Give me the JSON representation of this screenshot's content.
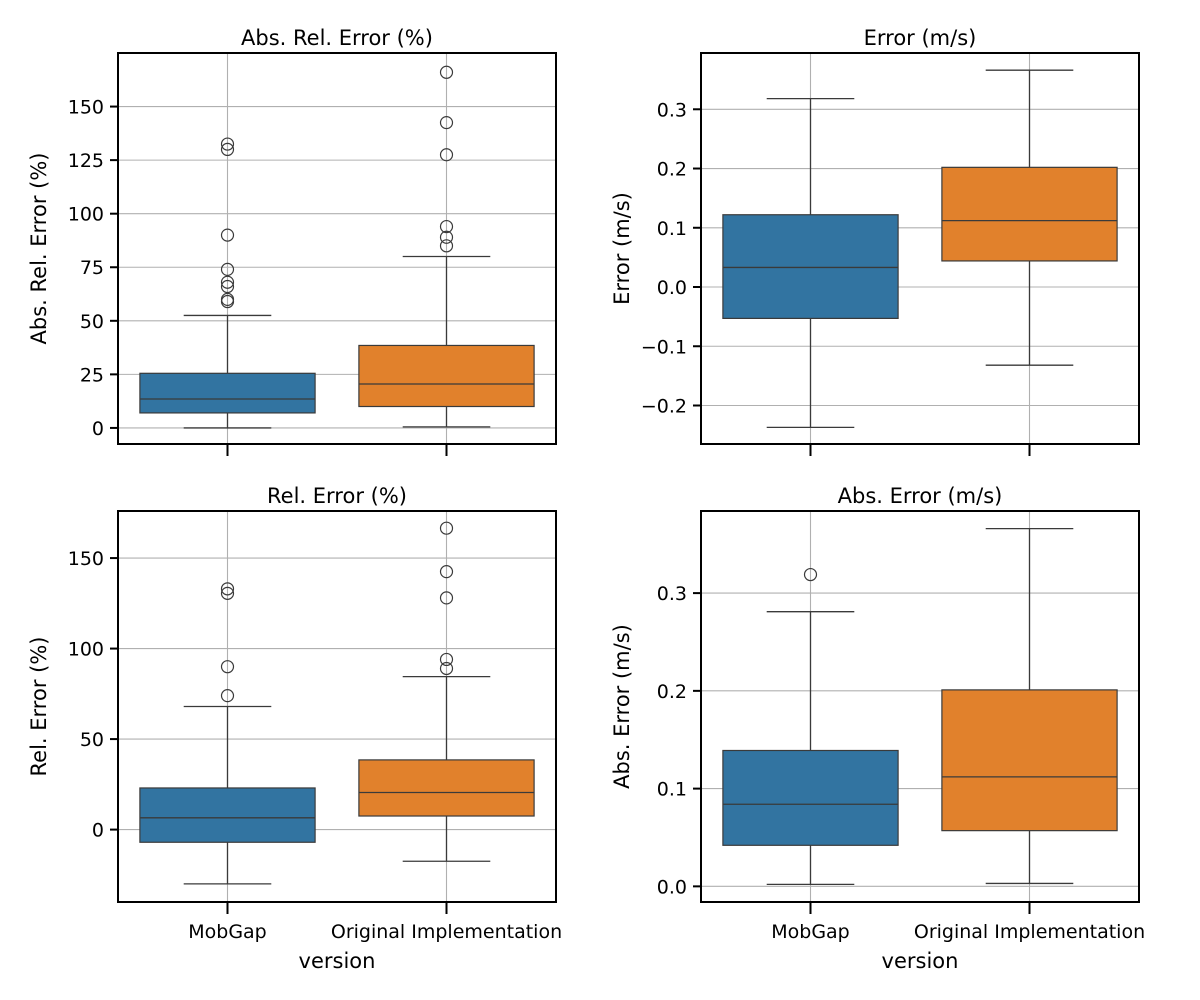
{
  "chart_data": [
    {
      "type": "box",
      "title": "Abs. Rel. Error (%)",
      "xlabel": "",
      "ylabel": "Abs. Rel. Error (%)",
      "categories": [
        "MobGap",
        "Original Implementation"
      ],
      "colors": [
        "#3274a1",
        "#e1812c"
      ],
      "ylim": [
        -7.5,
        175
      ],
      "yticks": [
        0,
        25,
        50,
        75,
        100,
        125,
        150
      ],
      "show_xticklabels": false,
      "grid": true,
      "boxes": [
        {
          "whislo": 0.0,
          "q1": 7.0,
          "med": 13.5,
          "q3": 25.5,
          "whishi": 52.5,
          "fliers": [
            59,
            60,
            66,
            68,
            74,
            90,
            130,
            132.5
          ]
        },
        {
          "whislo": 0.5,
          "q1": 10.0,
          "med": 20.5,
          "q3": 38.5,
          "whishi": 80.0,
          "fliers": [
            85,
            89,
            94,
            127.5,
            142.5,
            166
          ]
        }
      ]
    },
    {
      "type": "box",
      "title": "Error (m/s)",
      "xlabel": "",
      "ylabel": "Error (m/s)",
      "categories": [
        "MobGap",
        "Original Implementation"
      ],
      "colors": [
        "#3274a1",
        "#e1812c"
      ],
      "ylim": [
        -0.265,
        0.395
      ],
      "yticks": [
        -0.2,
        -0.1,
        0.0,
        0.1,
        0.2,
        0.3
      ],
      "ytick_labels": [
        "−0.2",
        "−0.1",
        "0.0",
        "0.1",
        "0.2",
        "0.3"
      ],
      "show_xticklabels": false,
      "grid": true,
      "boxes": [
        {
          "whislo": -0.237,
          "q1": -0.053,
          "med": 0.033,
          "q3": 0.122,
          "whishi": 0.318,
          "fliers": []
        },
        {
          "whislo": -0.132,
          "q1": 0.044,
          "med": 0.112,
          "q3": 0.202,
          "whishi": 0.366,
          "fliers": []
        }
      ]
    },
    {
      "type": "box",
      "title": "Rel. Error (%)",
      "xlabel": "version",
      "ylabel": "Rel. Error (%)",
      "categories": [
        "MobGap",
        "Original Implementation"
      ],
      "colors": [
        "#3274a1",
        "#e1812c"
      ],
      "ylim": [
        -40,
        176
      ],
      "yticks": [
        0,
        50,
        100,
        150
      ],
      "show_xticklabels": true,
      "grid": true,
      "boxes": [
        {
          "whislo": -30.0,
          "q1": -7.0,
          "med": 6.5,
          "q3": 23.0,
          "whishi": 68.0,
          "fliers": [
            74,
            90,
            130.5,
            133
          ]
        },
        {
          "whislo": -17.5,
          "q1": 7.5,
          "med": 20.5,
          "q3": 38.5,
          "whishi": 84.5,
          "fliers": [
            89,
            94,
            128,
            142.5,
            166.5
          ]
        }
      ]
    },
    {
      "type": "box",
      "title": "Abs. Error (m/s)",
      "xlabel": "version",
      "ylabel": "Abs. Error (m/s)",
      "categories": [
        "MobGap",
        "Original Implementation"
      ],
      "colors": [
        "#3274a1",
        "#e1812c"
      ],
      "ylim": [
        -0.016,
        0.384
      ],
      "yticks": [
        0.0,
        0.1,
        0.2,
        0.3
      ],
      "ytick_labels": [
        "0.0",
        "0.1",
        "0.2",
        "0.3"
      ],
      "show_xticklabels": true,
      "grid": true,
      "boxes": [
        {
          "whislo": 0.002,
          "q1": 0.042,
          "med": 0.084,
          "q3": 0.139,
          "whishi": 0.281,
          "fliers": [
            0.319
          ]
        },
        {
          "whislo": 0.003,
          "q1": 0.057,
          "med": 0.112,
          "q3": 0.201,
          "whishi": 0.366,
          "fliers": []
        }
      ]
    }
  ]
}
